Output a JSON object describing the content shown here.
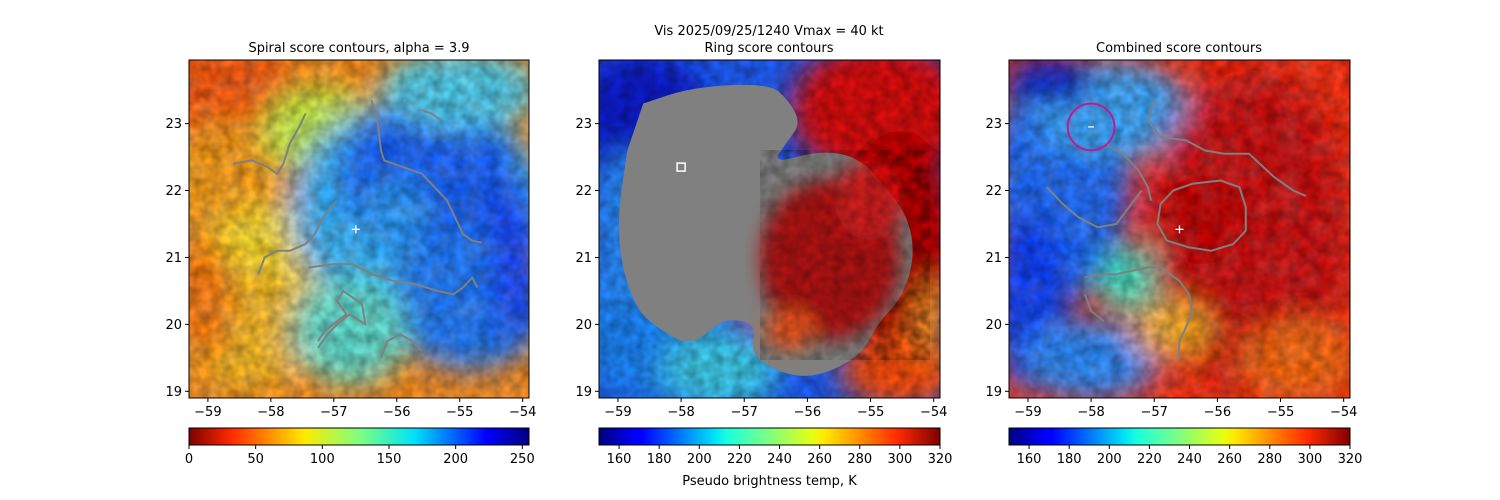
{
  "suptitle_line1": "Vis  2025/09/25/1240    Vmax = 40 kt",
  "colors": {
    "contour": "#808080",
    "ring_mask": "#808080",
    "center_marker": "#ffffff",
    "circle": "#c2198f"
  },
  "chart_data": [
    {
      "type": "heatmap",
      "id": "spiral",
      "title": "Spiral score contours, alpha =  3.9",
      "xlim": [
        -59.3,
        -53.9
      ],
      "ylim": [
        18.9,
        23.95
      ],
      "xticks": [
        -59,
        -58,
        -57,
        -56,
        -55,
        -54
      ],
      "yticks": [
        19,
        20,
        21,
        22,
        23
      ],
      "colorbar": {
        "range": [
          0,
          255
        ],
        "ticks": [
          0,
          50,
          100,
          150,
          200,
          250
        ],
        "colormap": "jet_reversed",
        "label": ""
      },
      "center_marker": {
        "x": -56.65,
        "y": 21.42
      },
      "contours": [
        [
          [
            -58.6,
            22.4
          ],
          [
            -58.3,
            22.45
          ],
          [
            -58.05,
            22.35
          ],
          [
            -57.9,
            22.25
          ],
          [
            -57.8,
            22.4
          ],
          [
            -57.7,
            22.7
          ],
          [
            -57.55,
            22.95
          ],
          [
            -57.45,
            23.15
          ]
        ],
        [
          [
            -56.4,
            23.35
          ],
          [
            -56.3,
            23.0
          ],
          [
            -56.25,
            22.6
          ],
          [
            -56.2,
            22.45
          ],
          [
            -55.9,
            22.35
          ],
          [
            -55.6,
            22.25
          ],
          [
            -55.4,
            22.05
          ],
          [
            -55.2,
            21.85
          ],
          [
            -55.05,
            21.55
          ],
          [
            -54.95,
            21.35
          ],
          [
            -54.8,
            21.25
          ],
          [
            -54.65,
            21.22
          ]
        ],
        [
          [
            -55.6,
            23.2
          ],
          [
            -55.45,
            23.15
          ],
          [
            -55.3,
            23.05
          ]
        ],
        [
          [
            -58.2,
            20.75
          ],
          [
            -58.1,
            21.0
          ],
          [
            -57.9,
            21.1
          ],
          [
            -57.7,
            21.1
          ],
          [
            -57.45,
            21.2
          ],
          [
            -57.3,
            21.35
          ],
          [
            -57.2,
            21.55
          ],
          [
            -57.05,
            21.75
          ],
          [
            -56.95,
            21.85
          ]
        ],
        [
          [
            -57.4,
            20.85
          ],
          [
            -57.0,
            20.9
          ],
          [
            -56.7,
            20.9
          ],
          [
            -56.4,
            20.75
          ],
          [
            -56.05,
            20.65
          ],
          [
            -55.7,
            20.6
          ],
          [
            -55.35,
            20.5
          ],
          [
            -55.1,
            20.45
          ],
          [
            -54.95,
            20.55
          ],
          [
            -54.8,
            20.7
          ],
          [
            -54.72,
            20.55
          ]
        ],
        [
          [
            -57.25,
            19.65
          ],
          [
            -57.1,
            19.85
          ],
          [
            -56.95,
            20.0
          ],
          [
            -56.75,
            20.15
          ],
          [
            -56.5,
            20.0
          ],
          [
            -56.55,
            20.3
          ],
          [
            -56.85,
            20.5
          ],
          [
            -56.95,
            20.35
          ],
          [
            -56.8,
            20.15
          ],
          [
            -57.15,
            19.9
          ],
          [
            -57.25,
            19.75
          ]
        ],
        [
          [
            -56.25,
            19.5
          ],
          [
            -56.15,
            19.75
          ],
          [
            -55.95,
            19.85
          ],
          [
            -55.75,
            19.75
          ],
          [
            -55.6,
            19.6
          ]
        ]
      ]
    },
    {
      "type": "heatmap",
      "id": "ring",
      "title": "Ring score contours",
      "xlim": [
        -59.3,
        -53.9
      ],
      "ylim": [
        18.9,
        23.95
      ],
      "xticks": [
        -59,
        -58,
        -57,
        -56,
        -55,
        -54
      ],
      "yticks": [
        19,
        20,
        21,
        22,
        23
      ],
      "colorbar": {
        "range": [
          150,
          320
        ],
        "ticks": [
          160,
          180,
          200,
          220,
          240,
          260,
          280,
          300,
          320
        ],
        "colormap": "jet",
        "label": "Pseudo brightness temp, K"
      },
      "square_marker": {
        "x": -58.0,
        "y": 22.35
      },
      "mask_region": [
        [
          -58.6,
          23.3
        ],
        [
          -57.8,
          23.55
        ],
        [
          -56.6,
          23.6
        ],
        [
          -56.3,
          23.35
        ],
        [
          -56.1,
          23.0
        ],
        [
          -56.35,
          22.7
        ],
        [
          -56.55,
          22.4
        ],
        [
          -55.8,
          22.6
        ],
        [
          -55.2,
          22.5
        ],
        [
          -54.8,
          22.1
        ],
        [
          -54.4,
          21.6
        ],
        [
          -54.3,
          21.0
        ],
        [
          -54.5,
          20.4
        ],
        [
          -54.9,
          20.0
        ],
        [
          -55.1,
          19.6
        ],
        [
          -55.6,
          19.3
        ],
        [
          -56.1,
          19.2
        ],
        [
          -56.6,
          19.35
        ],
        [
          -56.9,
          19.6
        ],
        [
          -56.8,
          20.0
        ],
        [
          -57.3,
          20.1
        ],
        [
          -57.6,
          19.85
        ],
        [
          -57.9,
          19.7
        ],
        [
          -58.3,
          19.9
        ],
        [
          -58.7,
          20.2
        ],
        [
          -58.95,
          20.9
        ],
        [
          -59.0,
          21.6
        ],
        [
          -58.9,
          22.3
        ],
        [
          -58.8,
          22.9
        ]
      ]
    },
    {
      "type": "heatmap",
      "id": "combined",
      "title": "Combined score contours",
      "xlim": [
        -59.3,
        -53.9
      ],
      "ylim": [
        18.9,
        23.95
      ],
      "xticks": [
        -59,
        -58,
        -57,
        -56,
        -55,
        -54
      ],
      "yticks": [
        19,
        20,
        21,
        22,
        23
      ],
      "colorbar": {
        "range": [
          150,
          320
        ],
        "ticks": [
          160,
          180,
          200,
          220,
          240,
          260,
          280,
          300,
          320
        ],
        "colormap": "jet",
        "label": ""
      },
      "center_marker": {
        "x": -56.6,
        "y": 21.42
      },
      "circle": {
        "x": -58.0,
        "y": 22.95,
        "r_x": 0.37
      },
      "contours": [
        [
          [
            -57.0,
            23.35
          ],
          [
            -57.1,
            23.05
          ],
          [
            -56.9,
            22.8
          ],
          [
            -56.5,
            22.75
          ],
          [
            -56.2,
            22.6
          ],
          [
            -55.9,
            22.55
          ],
          [
            -55.5,
            22.55
          ],
          [
            -55.1,
            22.2
          ],
          [
            -54.8,
            22.0
          ],
          [
            -54.6,
            21.92
          ]
        ],
        [
          [
            -57.8,
            22.7
          ],
          [
            -57.5,
            22.55
          ],
          [
            -57.25,
            22.3
          ],
          [
            -57.1,
            22.05
          ],
          [
            -57.05,
            21.85
          ]
        ],
        [
          [
            -58.7,
            22.05
          ],
          [
            -58.45,
            21.8
          ],
          [
            -58.2,
            21.6
          ],
          [
            -57.9,
            21.45
          ],
          [
            -57.6,
            21.5
          ],
          [
            -57.4,
            21.75
          ],
          [
            -57.2,
            22.0
          ]
        ],
        [
          [
            -56.4,
            22.1
          ],
          [
            -55.95,
            22.15
          ],
          [
            -55.65,
            22.05
          ],
          [
            -55.55,
            21.75
          ],
          [
            -55.55,
            21.4
          ],
          [
            -55.75,
            21.2
          ],
          [
            -56.1,
            21.1
          ],
          [
            -56.45,
            21.15
          ],
          [
            -56.8,
            21.25
          ],
          [
            -56.95,
            21.5
          ],
          [
            -56.9,
            21.8
          ],
          [
            -56.7,
            22.0
          ],
          [
            -56.4,
            22.1
          ]
        ],
        [
          [
            -58.1,
            20.7
          ],
          [
            -57.85,
            20.75
          ],
          [
            -57.6,
            20.75
          ],
          [
            -57.35,
            20.8
          ],
          [
            -57.1,
            20.85
          ],
          [
            -56.9,
            20.85
          ],
          [
            -56.6,
            20.65
          ],
          [
            -56.45,
            20.45
          ],
          [
            -56.4,
            20.2
          ],
          [
            -56.5,
            19.95
          ],
          [
            -56.6,
            19.75
          ],
          [
            -56.62,
            19.45
          ]
        ],
        [
          [
            -58.1,
            20.45
          ],
          [
            -58.0,
            20.2
          ],
          [
            -57.8,
            20.05
          ]
        ]
      ]
    }
  ]
}
